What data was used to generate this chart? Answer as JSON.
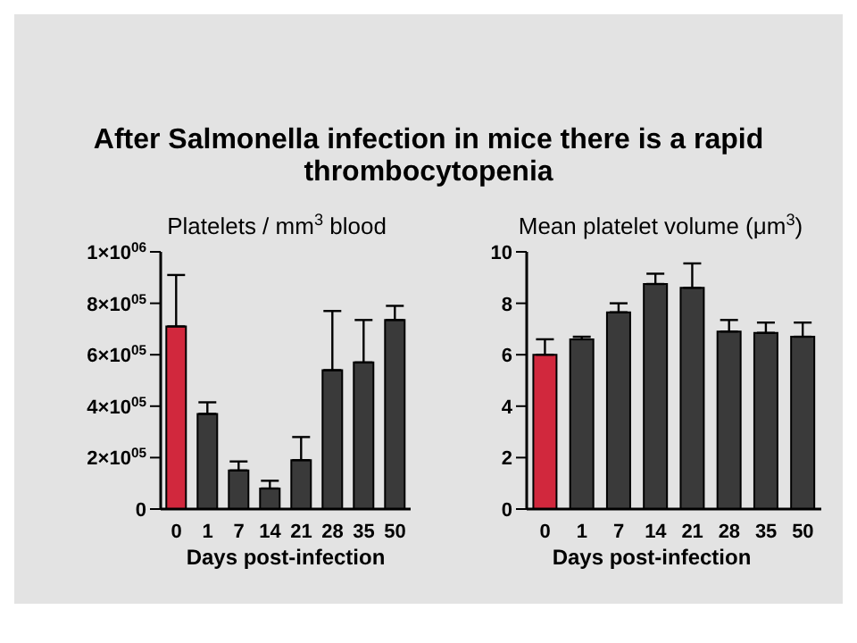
{
  "chart_data": [
    {
      "type": "bar",
      "title": "After Salmonella infection in mice there is a rapid thrombocytopenia",
      "subtitle": "Platelets / mm$^{3}$ blood",
      "xlabel": "Days post-infection",
      "categories": [
        "0",
        "1",
        "7",
        "14",
        "21",
        "28",
        "35",
        "50"
      ],
      "values": [
        710000,
        370000,
        150000,
        80000,
        190000,
        540000,
        570000,
        735000
      ],
      "errors": [
        [
          710000,
          910000
        ],
        [
          370000,
          415000
        ],
        [
          150000,
          185000
        ],
        [
          80000,
          110000
        ],
        [
          190000,
          280000
        ],
        [
          540000,
          770000
        ],
        [
          570000,
          735000
        ],
        [
          735000,
          790000
        ]
      ],
      "colors": [
        "#d1283d",
        "#3a3a3a",
        "#3a3a3a",
        "#3a3a3a",
        "#3a3a3a",
        "#3a3a3a",
        "#3a3a3a",
        "#3a3a3a"
      ],
      "ylim": [
        0,
        1000000
      ],
      "yticks": [
        0,
        {
          "value": 200000,
          "label": "2×10$^{05}$"
        },
        {
          "value": 400000,
          "label": "4×10$^{05}$"
        },
        {
          "value": 600000,
          "label": "6×10$^{05}$"
        },
        {
          "value": 800000,
          "label": "8×10$^{05}$"
        },
        {
          "value": 1000000,
          "label": "1×10$^{06}$"
        }
      ]
    },
    {
      "type": "bar",
      "title": "Mean platelet volume (μm$^{3}$)",
      "xlabel": "Days post-infection",
      "categories": [
        "0",
        "1",
        "7",
        "14",
        "21",
        "28",
        "35",
        "50"
      ],
      "values": [
        6.0,
        6.6,
        7.65,
        8.75,
        8.6,
        6.9,
        6.85,
        6.7
      ],
      "errors": [
        [
          6.0,
          6.6
        ],
        [
          6.6,
          6.7
        ],
        [
          7.65,
          8.0
        ],
        [
          8.75,
          9.15
        ],
        [
          8.6,
          9.55
        ],
        [
          6.9,
          7.35
        ],
        [
          6.85,
          7.25
        ],
        [
          6.7,
          7.25
        ]
      ],
      "colors": [
        "#d1283d",
        "#3a3a3a",
        "#3a3a3a",
        "#3a3a3a",
        "#3a3a3a",
        "#3a3a3a",
        "#3a3a3a",
        "#3a3a3a"
      ],
      "ylim": [
        0,
        10
      ],
      "yticks": [
        0,
        2,
        4,
        6,
        8,
        10
      ]
    }
  ]
}
